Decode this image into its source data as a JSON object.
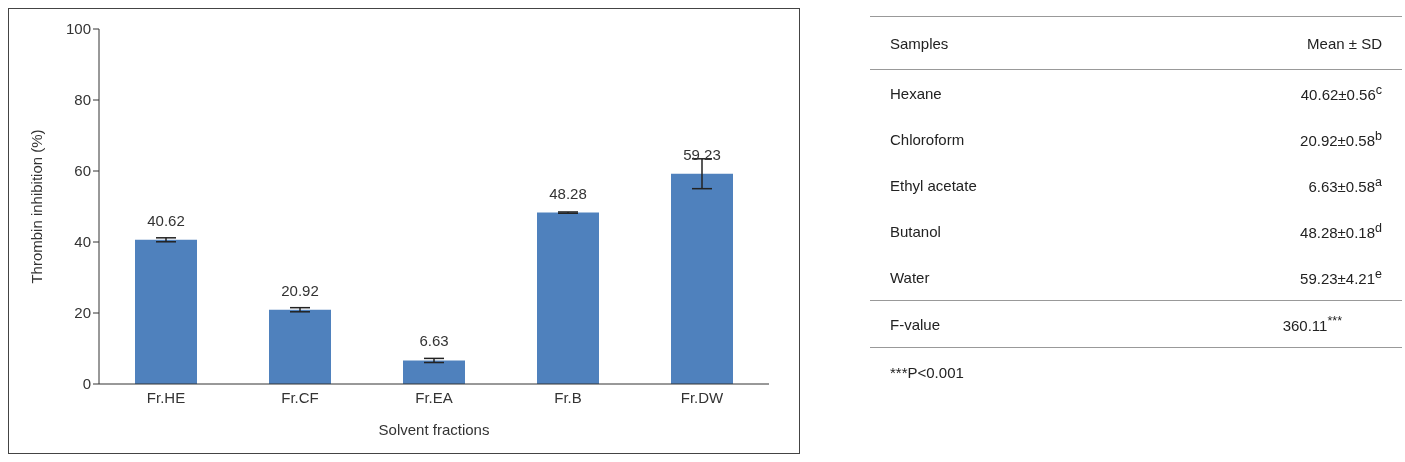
{
  "chart_data": [
    {
      "type": "bar",
      "ylabel": "Thrombin inhibition (%)",
      "xlabel": "Solvent fractions",
      "categories": [
        "Fr.HE",
        "Fr.CF",
        "Fr.EA",
        "Fr.B",
        "Fr.DW"
      ],
      "values": [
        40.62,
        20.92,
        6.63,
        48.28,
        59.23
      ],
      "errors": [
        0.56,
        0.58,
        0.58,
        0.18,
        4.21
      ],
      "color": "#4f81bd",
      "ylim": [
        0,
        100
      ],
      "yticks": [
        0,
        20,
        40,
        60,
        80,
        100
      ],
      "grid": false,
      "data_labels": true
    },
    {
      "type": "other",
      "annotations": [
        "Samples",
        "Mean ± SD",
        "Hexane",
        "40.62±0.56$^{c}$",
        "Chloroform",
        "20.92±0.58$^{b}$",
        "Ethyl acetate",
        "6.63±0.58$^{a}$",
        "Butanol",
        "48.28±0.18$^{d}$",
        "Water",
        "59.23±4.21$^{e}$",
        "F-value",
        "360.11$^{***}$",
        "***P<0.001"
      ]
    }
  ]
}
